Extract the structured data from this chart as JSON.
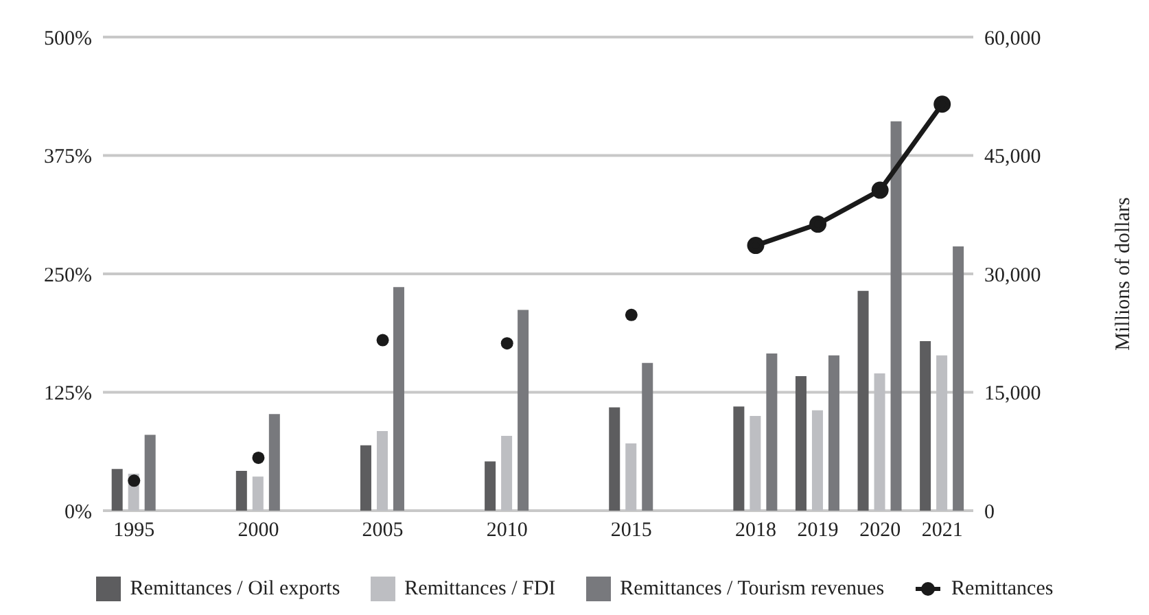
{
  "chart_data": {
    "type": "bar",
    "y2label": "Millions of dollars",
    "categories": [
      "1995",
      null,
      "2000",
      null,
      "2005",
      null,
      "2010",
      null,
      "2015",
      null,
      "2018",
      "2019",
      "2020",
      "2021"
    ],
    "series": [
      {
        "name": "Remittances / Oil exports",
        "color": "#5d5d5f",
        "values": [
          44,
          null,
          42,
          null,
          69,
          null,
          52,
          null,
          109,
          null,
          110,
          142,
          232,
          179
        ]
      },
      {
        "name": "Remittances / FDI",
        "color": "#bdbec2",
        "values": [
          39,
          null,
          36,
          null,
          84,
          null,
          79,
          null,
          71,
          null,
          100,
          106,
          145,
          164
        ]
      },
      {
        "name": "Remittances / Tourism revenues",
        "color": "#78797d",
        "values": [
          80,
          null,
          102,
          null,
          236,
          null,
          212,
          null,
          156,
          null,
          166,
          164,
          411,
          279
        ]
      },
      {
        "type": "scatter",
        "axis": "y2",
        "color": "#1a1a1a",
        "values": [
          3800,
          null,
          6700,
          null,
          21600,
          null,
          21200,
          null,
          24800,
          null,
          null,
          null,
          null,
          null
        ]
      },
      {
        "name": "Remittances",
        "type": "line",
        "axis": "y2",
        "color": "#1a1a1a",
        "marker": "circle",
        "line_style": "solid",
        "values": [
          null,
          null,
          null,
          null,
          null,
          null,
          null,
          null,
          null,
          null,
          33600,
          36300,
          40600,
          51500
        ]
      }
    ],
    "ylim": [
      0,
      500
    ],
    "yticks": [
      {
        "value": 0,
        "label": "0%"
      },
      {
        "value": 125,
        "label": "125%"
      },
      {
        "value": 250,
        "label": "250%"
      },
      {
        "value": 375,
        "label": "375%"
      },
      {
        "value": 500,
        "label": "500%"
      }
    ],
    "y2lim": [
      0,
      60000
    ],
    "y2ticks": [
      0,
      {
        "value": 15000,
        "label": "15,000"
      },
      {
        "value": 30000,
        "label": "30,000"
      },
      {
        "value": 45000,
        "label": "45,000"
      },
      {
        "value": 60000,
        "label": "60,000"
      }
    ],
    "grid": "y",
    "legend": "bottom"
  }
}
